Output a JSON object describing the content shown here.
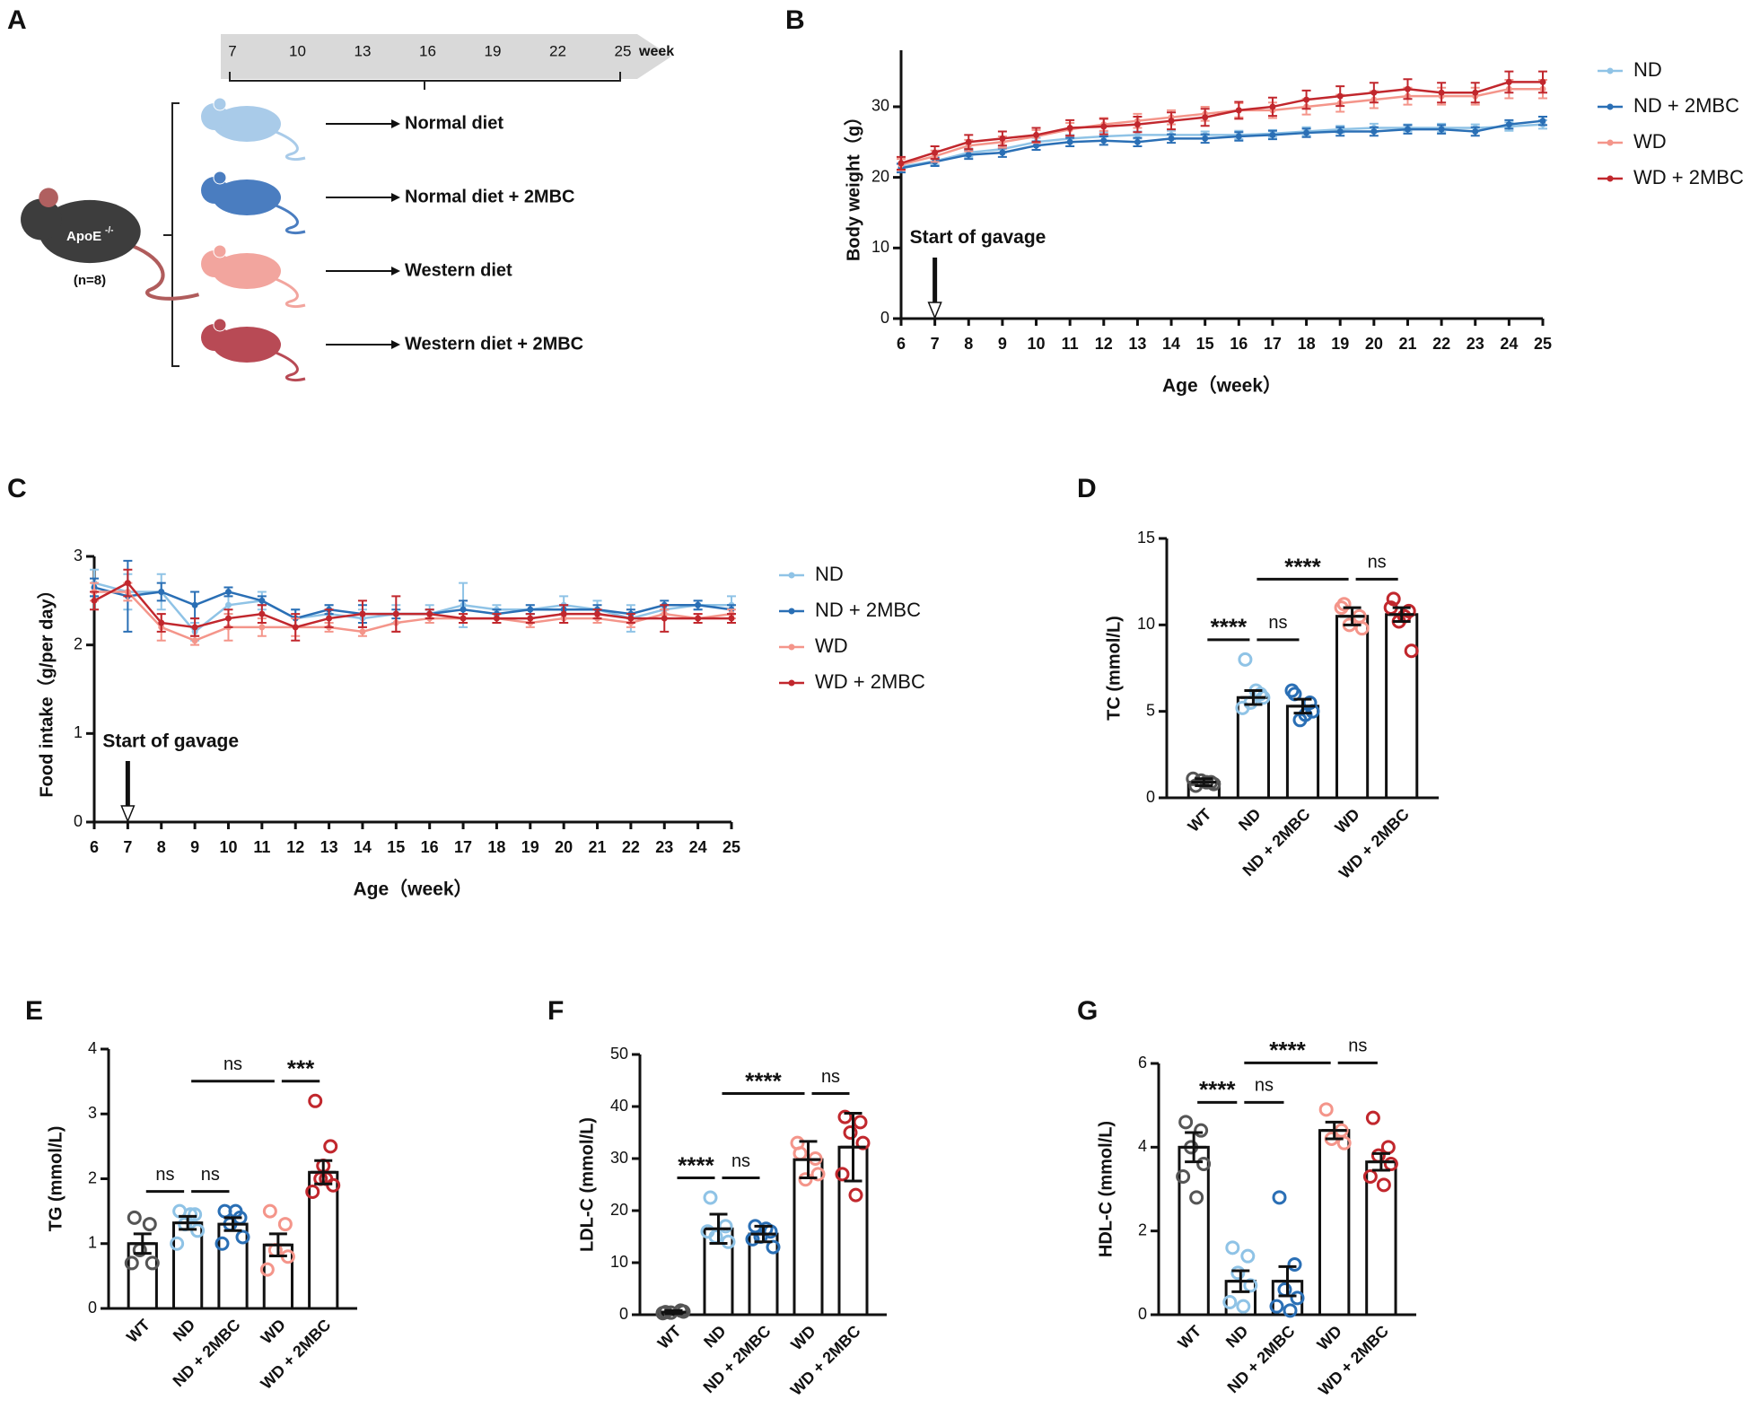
{
  "panel_a": {
    "label": "A",
    "weeks": [
      7,
      10,
      13,
      16,
      19,
      22,
      25
    ],
    "week_unit": "week",
    "groups": [
      "Normal diet",
      "Normal diet + 2MBC",
      "Western diet",
      "Western diet + 2MBC"
    ],
    "strain": "ApoE",
    "strain_sup": "-/-",
    "n": "(n=8)"
  },
  "chart_data": [
    {
      "type": "line",
      "panel": "B",
      "ylabel": "Body weight（g）",
      "xlabel": "Age（week）",
      "annotation": "Start of gavage",
      "annotation_x": 7,
      "legend": "right",
      "x": [
        6,
        7,
        8,
        9,
        10,
        11,
        12,
        13,
        14,
        15,
        16,
        17,
        18,
        19,
        20,
        21,
        22,
        23,
        24,
        25
      ],
      "xlim": [
        6,
        25
      ],
      "xticks": [
        6,
        7,
        8,
        9,
        10,
        11,
        12,
        13,
        14,
        15,
        16,
        17,
        18,
        19,
        20,
        21,
        22,
        23,
        24,
        25
      ],
      "ylim": [
        0,
        38
      ],
      "yticks": [
        0,
        10,
        20,
        30
      ],
      "series": [
        {
          "name": "ND",
          "color": "#8fc3e6",
          "values": [
            21.5,
            22.3,
            23.5,
            24,
            25,
            25.5,
            25.8,
            26,
            26,
            26,
            26,
            26.2,
            26.5,
            26.8,
            27,
            27,
            27,
            27,
            27.2,
            27.5
          ],
          "errors": [
            0.5,
            0.5,
            0.6,
            0.5,
            0.6,
            0.5,
            0.6,
            0.5,
            0.6,
            0.5,
            0.6,
            0.5,
            0.6,
            0.5,
            0.6,
            0.5,
            0.6,
            0.5,
            0.6,
            0.6
          ]
        },
        {
          "name": "ND + 2MBC",
          "color": "#2a6fb5",
          "values": [
            21.3,
            22.2,
            23.2,
            23.5,
            24.5,
            25,
            25.2,
            25,
            25.5,
            25.5,
            25.8,
            26,
            26.3,
            26.5,
            26.5,
            26.8,
            26.8,
            26.5,
            27.5,
            28
          ],
          "errors": [
            0.6,
            0.6,
            0.6,
            0.6,
            0.6,
            0.6,
            0.6,
            0.6,
            0.6,
            0.6,
            0.6,
            0.6,
            0.6,
            0.6,
            0.6,
            0.6,
            0.6,
            0.6,
            0.6,
            0.6
          ]
        },
        {
          "name": "WD",
          "color": "#f4958a",
          "values": [
            21.8,
            23,
            24.5,
            25,
            25.8,
            26.8,
            27.5,
            28,
            28.5,
            29,
            29.5,
            29.5,
            30,
            30.5,
            31,
            31.5,
            31.5,
            31.5,
            32.5,
            32.5
          ],
          "errors": [
            0.8,
            0.8,
            0.8,
            0.8,
            0.9,
            0.9,
            0.9,
            1,
            1,
            1,
            1,
            1.1,
            1.1,
            1.2,
            1.2,
            1.2,
            1.2,
            1.2,
            1.3,
            1.3
          ]
        },
        {
          "name": "WD + 2MBC",
          "color": "#c1272d",
          "values": [
            22,
            23.5,
            25,
            25.5,
            26,
            27,
            27.2,
            27.5,
            28,
            28.5,
            29.5,
            30,
            31,
            31.5,
            32,
            32.5,
            32,
            32,
            33.5,
            33.5
          ],
          "errors": [
            0.9,
            0.9,
            1,
            1,
            1,
            1.1,
            1.1,
            1.1,
            1.2,
            1.2,
            1.2,
            1.3,
            1.3,
            1.4,
            1.4,
            1.4,
            1.4,
            1.4,
            1.5,
            1.5
          ]
        }
      ]
    },
    {
      "type": "line",
      "panel": "C",
      "ylabel": "Food intake（g/per day）",
      "xlabel": "Age（week）",
      "annotation": "Start of gavage",
      "annotation_x": 7,
      "legend": "right",
      "x": [
        6,
        7,
        8,
        9,
        10,
        11,
        12,
        13,
        14,
        15,
        16,
        17,
        18,
        19,
        20,
        21,
        22,
        23,
        24,
        25
      ],
      "xlim": [
        6,
        25
      ],
      "xticks": [
        6,
        7,
        8,
        9,
        10,
        11,
        12,
        13,
        14,
        15,
        16,
        17,
        18,
        19,
        20,
        21,
        22,
        23,
        24,
        25
      ],
      "ylim": [
        0,
        3
      ],
      "yticks": [
        0,
        1,
        2,
        3
      ],
      "series": [
        {
          "name": "ND",
          "color": "#8fc3e6",
          "values": [
            2.7,
            2.6,
            2.6,
            2.15,
            2.45,
            2.5,
            2.3,
            2.35,
            2.3,
            2.35,
            2.35,
            2.45,
            2.4,
            2.4,
            2.45,
            2.4,
            2.3,
            2.4,
            2.45,
            2.45
          ],
          "errors": [
            0.15,
            0.2,
            0.2,
            0.1,
            0.1,
            0.1,
            0.1,
            0.1,
            0.1,
            0.1,
            0.1,
            0.25,
            0.05,
            0.05,
            0.1,
            0.1,
            0.15,
            0.05,
            0.05,
            0.1
          ]
        },
        {
          "name": "ND + 2MBC",
          "color": "#2a6fb5",
          "values": [
            2.65,
            2.55,
            2.6,
            2.45,
            2.6,
            2.5,
            2.3,
            2.4,
            2.35,
            2.35,
            2.35,
            2.4,
            2.35,
            2.4,
            2.4,
            2.4,
            2.35,
            2.45,
            2.45,
            2.4
          ],
          "errors": [
            0.1,
            0.4,
            0.1,
            0.15,
            0.05,
            0.05,
            0.1,
            0.05,
            0.1,
            0.05,
            0.05,
            0.1,
            0.05,
            0.05,
            0.05,
            0.05,
            0.05,
            0.05,
            0.05,
            0.05
          ]
        },
        {
          "name": "WD",
          "color": "#f4958a",
          "values": [
            2.6,
            2.6,
            2.2,
            2.05,
            2.2,
            2.2,
            2.2,
            2.2,
            2.15,
            2.25,
            2.3,
            2.3,
            2.3,
            2.25,
            2.3,
            2.3,
            2.25,
            2.35,
            2.3,
            2.35
          ],
          "errors": [
            0.1,
            0.1,
            0.15,
            0.05,
            0.15,
            0.1,
            0.1,
            0.05,
            0.05,
            0.1,
            0.05,
            0.05,
            0.05,
            0.05,
            0.05,
            0.05,
            0.05,
            0.05,
            0.05,
            0.05
          ]
        },
        {
          "name": "WD + 2MBC",
          "color": "#c1272d",
          "values": [
            2.5,
            2.7,
            2.25,
            2.2,
            2.3,
            2.35,
            2.2,
            2.3,
            2.35,
            2.35,
            2.35,
            2.3,
            2.3,
            2.3,
            2.35,
            2.35,
            2.3,
            2.3,
            2.3,
            2.3
          ],
          "errors": [
            0.1,
            0.15,
            0.1,
            0.1,
            0.1,
            0.1,
            0.15,
            0.1,
            0.15,
            0.2,
            0.05,
            0.05,
            0.05,
            0.05,
            0.1,
            0.05,
            0.05,
            0.15,
            0.05,
            0.05
          ]
        }
      ]
    },
    {
      "type": "bar",
      "panel": "D",
      "ylabel": "TC (mmol/L)",
      "categories": [
        "WT",
        "ND",
        "ND + 2MBC",
        "WD",
        "WD + 2MBC"
      ],
      "colors": [
        "#555555",
        "#8fc3e6",
        "#2a6fb5",
        "#f4958a",
        "#c1272d"
      ],
      "ylim": [
        0,
        15
      ],
      "yticks": [
        0,
        5,
        10,
        15
      ],
      "values": [
        0.9,
        5.8,
        5.3,
        10.5,
        10.6
      ],
      "errors": [
        0.2,
        0.4,
        0.4,
        0.5,
        0.4
      ],
      "points": [
        [
          0.7,
          0.9,
          1.0,
          0.8,
          1.1,
          0.9
        ],
        [
          8,
          6,
          5.5,
          5.8,
          5.2,
          6.2
        ],
        [
          6,
          5.5,
          4.5,
          5,
          6.2,
          4.8
        ],
        [
          11.2,
          10.5,
          10,
          9.8,
          11
        ],
        [
          11.5,
          10.8,
          10.2,
          8.5,
          11,
          10.5
        ]
      ],
      "brackets": [
        {
          "from": 0,
          "to": 1,
          "label": "****"
        },
        {
          "from": 1,
          "to": 2,
          "label": "ns"
        },
        {
          "from": 1,
          "to": 3,
          "label": "****"
        },
        {
          "from": 3,
          "to": 4,
          "label": "ns"
        }
      ]
    },
    {
      "type": "bar",
      "panel": "E",
      "ylabel": "TG (mmol/L)",
      "categories": [
        "WT",
        "ND",
        "ND + 2MBC",
        "WD",
        "WD + 2MBC"
      ],
      "colors": [
        "#555555",
        "#8fc3e6",
        "#2a6fb5",
        "#f4958a",
        "#c1272d"
      ],
      "ylim": [
        0,
        4
      ],
      "yticks": [
        0,
        1,
        2,
        3,
        4
      ],
      "values": [
        1.0,
        1.32,
        1.3,
        0.98,
        2.1
      ],
      "errors": [
        0.15,
        0.1,
        0.1,
        0.17,
        0.18
      ],
      "points": [
        [
          1.4,
          1.3,
          0.9,
          0.7,
          0.7
        ],
        [
          1.5,
          1.45,
          1.3,
          1.2,
          1.0,
          1.45
        ],
        [
          1.5,
          1.4,
          1.3,
          1.1,
          1.0,
          1.5
        ],
        [
          1.5,
          1.3,
          0.9,
          0.8,
          0.6
        ],
        [
          3.2,
          2.5,
          2.0,
          1.9,
          1.8,
          2.0,
          2.2
        ]
      ],
      "brackets": [
        {
          "from": 0,
          "to": 1,
          "label": "ns"
        },
        {
          "from": 1,
          "to": 2,
          "label": "ns"
        },
        {
          "from": 1,
          "to": 3,
          "label": "ns"
        },
        {
          "from": 3,
          "to": 4,
          "label": "***"
        }
      ]
    },
    {
      "type": "bar",
      "panel": "F",
      "ylabel": "LDL-C (mmol/L)",
      "categories": [
        "WT",
        "ND",
        "ND + 2MBC",
        "WD",
        "WD + 2MBC"
      ],
      "colors": [
        "#555555",
        "#8fc3e6",
        "#2a6fb5",
        "#f4958a",
        "#c1272d"
      ],
      "ylim": [
        0,
        50
      ],
      "yticks": [
        0,
        10,
        20,
        30,
        40,
        50
      ],
      "values": [
        0.5,
        16.5,
        15.5,
        29.8,
        32.2
      ],
      "errors": [
        0.3,
        2.8,
        1.5,
        3.5,
        6.5
      ],
      "points": [
        [
          0.5,
          0.8,
          0.4,
          0.6,
          0.3
        ],
        [
          22.5,
          17,
          15,
          14,
          16
        ],
        [
          17,
          16,
          15,
          13,
          14.5,
          16.5
        ],
        [
          31,
          30,
          26,
          27,
          33
        ],
        [
          38,
          37,
          35,
          33,
          27,
          23
        ]
      ],
      "brackets": [
        {
          "from": 0,
          "to": 1,
          "label": "****"
        },
        {
          "from": 1,
          "to": 2,
          "label": "ns"
        },
        {
          "from": 1,
          "to": 3,
          "label": "****"
        },
        {
          "from": 3,
          "to": 4,
          "label": "ns"
        }
      ]
    },
    {
      "type": "bar",
      "panel": "G",
      "ylabel": "HDL-C (mmol/L)",
      "categories": [
        "WT",
        "ND",
        "ND + 2MBC",
        "WD",
        "WD + 2MBC"
      ],
      "colors": [
        "#555555",
        "#8fc3e6",
        "#2a6fb5",
        "#f4958a",
        "#c1272d"
      ],
      "ylim": [
        0,
        6
      ],
      "yticks": [
        0,
        2,
        4,
        6
      ],
      "values": [
        4.0,
        0.8,
        0.8,
        4.4,
        3.65
      ],
      "errors": [
        0.35,
        0.25,
        0.35,
        0.2,
        0.2
      ],
      "points": [
        [
          4.6,
          4.4,
          4.0,
          3.6,
          3.3,
          2.8
        ],
        [
          1.6,
          1.4,
          1.0,
          0.7,
          0.3,
          0.2
        ],
        [
          2.8,
          1.2,
          0.6,
          0.4,
          0.2,
          0.1
        ],
        [
          4.9,
          4.4,
          4.2,
          4.1
        ],
        [
          4.7,
          4.0,
          3.8,
          3.6,
          3.3,
          3.1
        ]
      ],
      "brackets": [
        {
          "from": 0,
          "to": 1,
          "label": "****"
        },
        {
          "from": 1,
          "to": 2,
          "label": "ns"
        },
        {
          "from": 1,
          "to": 3,
          "label": "****"
        },
        {
          "from": 3,
          "to": 4,
          "label": "ns"
        }
      ]
    }
  ]
}
